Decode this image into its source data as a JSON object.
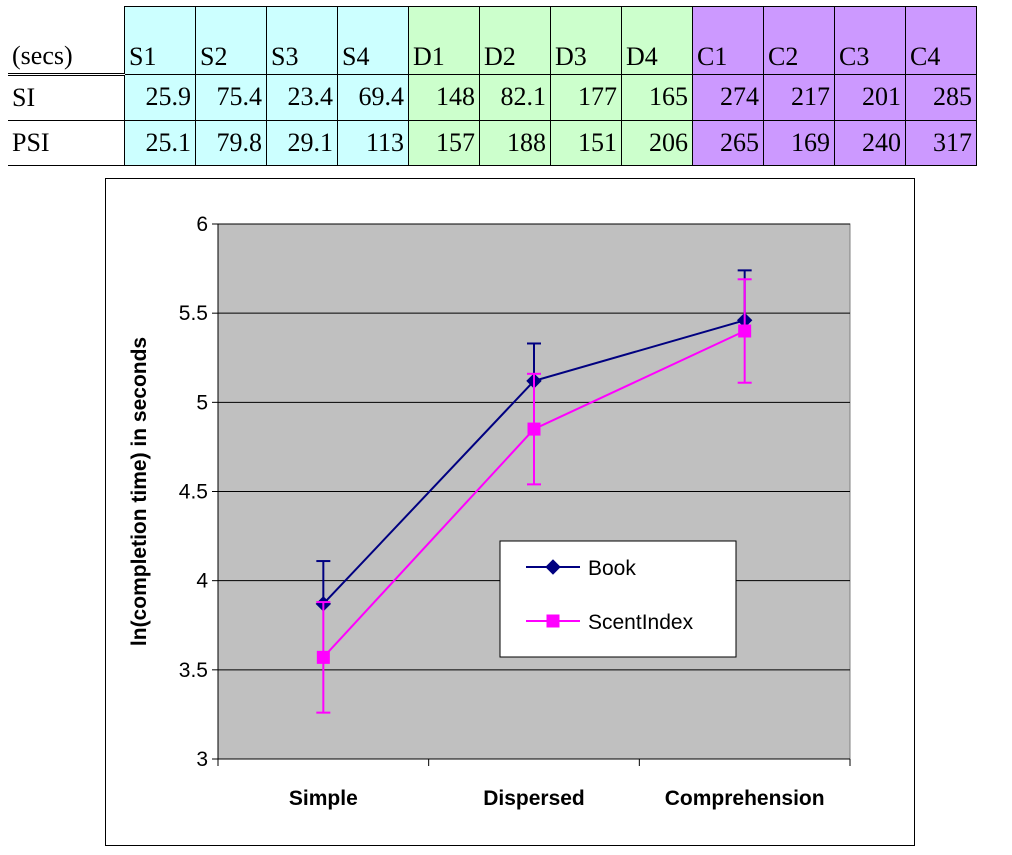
{
  "table": {
    "corner": "(secs)",
    "columns": [
      {
        "label": "S1",
        "group": "simple"
      },
      {
        "label": "S2",
        "group": "simple"
      },
      {
        "label": "S3",
        "group": "simple"
      },
      {
        "label": "S4",
        "group": "simple"
      },
      {
        "label": "D1",
        "group": "dispersed"
      },
      {
        "label": "D2",
        "group": "dispersed"
      },
      {
        "label": "D3",
        "group": "dispersed"
      },
      {
        "label": "D4",
        "group": "dispersed"
      },
      {
        "label": "C1",
        "group": "comprehension"
      },
      {
        "label": "C2",
        "group": "comprehension"
      },
      {
        "label": "C3",
        "group": "comprehension"
      },
      {
        "label": "C4",
        "group": "comprehension"
      }
    ],
    "rows": [
      {
        "label": "SI",
        "values": [
          "25.9",
          "75.4",
          "23.4",
          "69.4",
          "148",
          "82.1",
          "177",
          "165",
          "274",
          "217",
          "201",
          "285"
        ]
      },
      {
        "label": "PSI",
        "values": [
          "25.1",
          "79.8",
          "29.1",
          "113",
          "157",
          "188",
          "151",
          "206",
          "265",
          "169",
          "240",
          "317"
        ]
      }
    ],
    "group_colors": {
      "simple": "#ccffff",
      "dispersed": "#ccffcc",
      "comprehension": "#cc99ff"
    }
  },
  "chart_data": {
    "type": "line",
    "categories": [
      "Simple",
      "Dispersed",
      "Comprehension"
    ],
    "ylabel": "ln(completion time) in seconds",
    "ylim": [
      3,
      6
    ],
    "yticks": [
      "3",
      "3.5",
      "4",
      "4.5",
      "5",
      "5.5",
      "6"
    ],
    "grid": true,
    "legend_position": "inside-right",
    "plot_background": "#c0c0c0",
    "series": [
      {
        "name": "Book",
        "color": "#000080",
        "marker": "diamond",
        "values": [
          3.87,
          5.12,
          5.46
        ],
        "err_upper": [
          4.11,
          5.33,
          5.74
        ],
        "err_lower": null
      },
      {
        "name": "ScentIndex",
        "color": "#ff00ff",
        "marker": "square",
        "values": [
          3.57,
          4.85,
          5.4
        ],
        "err_upper": [
          3.88,
          5.16,
          5.69
        ],
        "err_lower": [
          3.26,
          4.54,
          5.11
        ]
      }
    ]
  }
}
